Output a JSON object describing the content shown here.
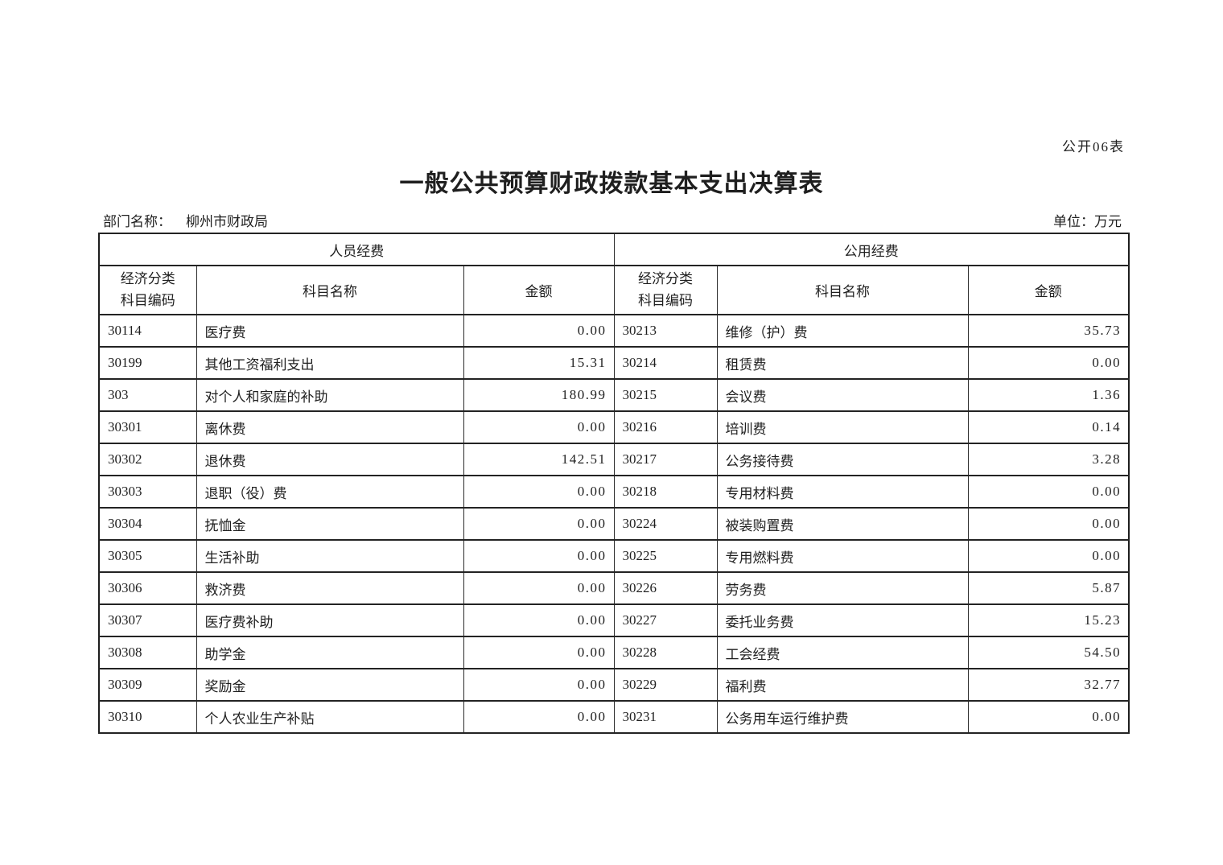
{
  "page": {
    "doc_label": "公开06表",
    "title": "一般公共预算财政拨款基本支出决算表",
    "department_label": "部门名称：",
    "department_value": "柳州市财政局",
    "unit_label": "单位：万元"
  },
  "table": {
    "groups": [
      {
        "label": "人员经费"
      },
      {
        "label": "公用经费"
      }
    ],
    "columns": {
      "code_line1": "经济分类",
      "code_line2": "科目编码",
      "name": "科目名称",
      "amount": "金额"
    },
    "rows": [
      {
        "left": {
          "code": "30114",
          "name": "医疗费",
          "amount": "0.00"
        },
        "right": {
          "code": "30213",
          "name": "维修（护）费",
          "amount": "35.73"
        }
      },
      {
        "left": {
          "code": "30199",
          "name": "其他工资福利支出",
          "amount": "15.31"
        },
        "right": {
          "code": "30214",
          "name": "租赁费",
          "amount": "0.00"
        }
      },
      {
        "left": {
          "code": "303",
          "name": "对个人和家庭的补助",
          "amount": "180.99"
        },
        "right": {
          "code": "30215",
          "name": "会议费",
          "amount": "1.36"
        }
      },
      {
        "left": {
          "code": "30301",
          "name": "离休费",
          "amount": "0.00"
        },
        "right": {
          "code": "30216",
          "name": "培训费",
          "amount": "0.14"
        }
      },
      {
        "left": {
          "code": "30302",
          "name": "退休费",
          "amount": "142.51"
        },
        "right": {
          "code": "30217",
          "name": "公务接待费",
          "amount": "3.28"
        }
      },
      {
        "left": {
          "code": "30303",
          "name": "退职（役）费",
          "amount": "0.00"
        },
        "right": {
          "code": "30218",
          "name": "专用材料费",
          "amount": "0.00"
        }
      },
      {
        "left": {
          "code": "30304",
          "name": "抚恤金",
          "amount": "0.00"
        },
        "right": {
          "code": "30224",
          "name": "被装购置费",
          "amount": "0.00"
        }
      },
      {
        "left": {
          "code": "30305",
          "name": "生活补助",
          "amount": "0.00"
        },
        "right": {
          "code": "30225",
          "name": "专用燃料费",
          "amount": "0.00"
        }
      },
      {
        "left": {
          "code": "30306",
          "name": "救济费",
          "amount": "0.00"
        },
        "right": {
          "code": "30226",
          "name": "劳务费",
          "amount": "5.87"
        }
      },
      {
        "left": {
          "code": "30307",
          "name": "医疗费补助",
          "amount": "0.00"
        },
        "right": {
          "code": "30227",
          "name": "委托业务费",
          "amount": "15.23"
        }
      },
      {
        "left": {
          "code": "30308",
          "name": "助学金",
          "amount": "0.00"
        },
        "right": {
          "code": "30228",
          "name": "工会经费",
          "amount": "54.50"
        }
      },
      {
        "left": {
          "code": "30309",
          "name": "奖励金",
          "amount": "0.00"
        },
        "right": {
          "code": "30229",
          "name": "福利费",
          "amount": "32.77"
        }
      },
      {
        "left": {
          "code": "30310",
          "name": "个人农业生产补贴",
          "amount": "0.00"
        },
        "right": {
          "code": "30231",
          "name": "公务用车运行维护费",
          "amount": "0.00"
        }
      }
    ]
  }
}
